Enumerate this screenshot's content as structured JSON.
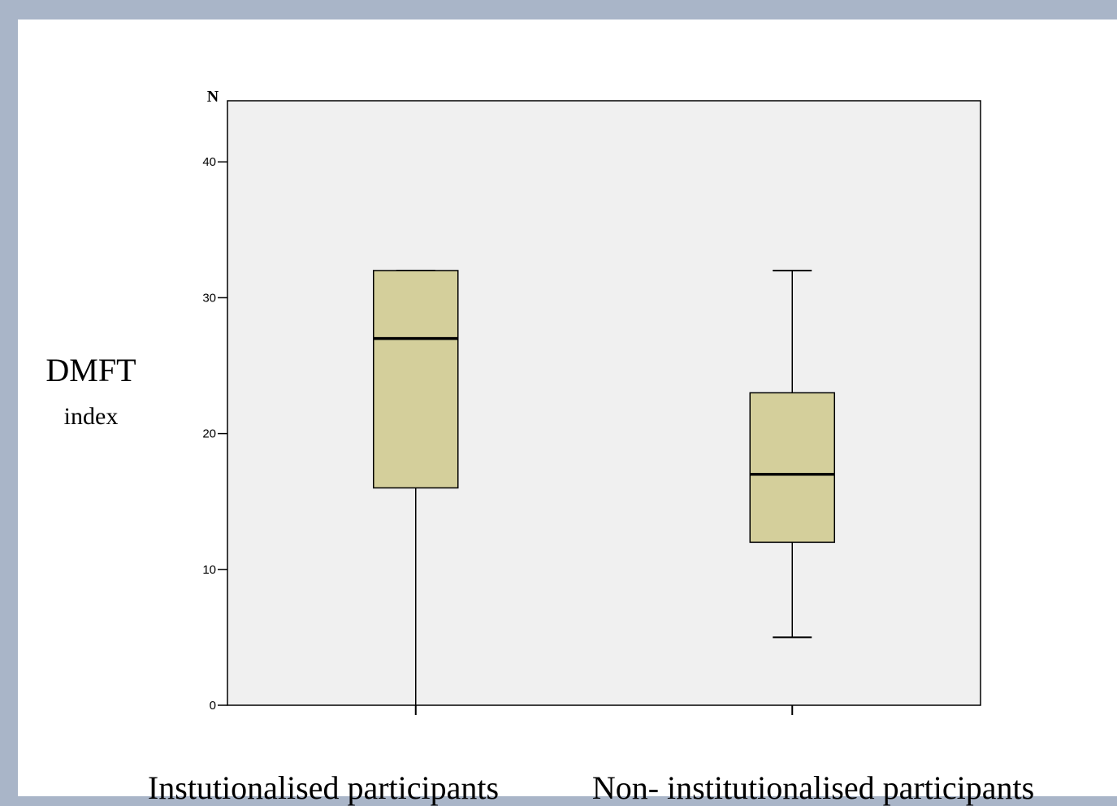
{
  "chart_data": {
    "type": "boxplot",
    "y_axis_top_label": "N",
    "ylabel": "DMFT",
    "ylabel_sub": "index",
    "ylim": [
      0,
      44.5
    ],
    "yticks": [
      0,
      10,
      20,
      30,
      40
    ],
    "categories": [
      "Instutionalised participants",
      "Non- institutionalised participants"
    ],
    "boxes": [
      {
        "category": "Instutionalised participants",
        "min": 0,
        "q1": 16,
        "median": 27,
        "q3": 32,
        "max": 32
      },
      {
        "category": "Non- institutionalised participants",
        "min": 5,
        "q1": 12,
        "median": 17,
        "q3": 23,
        "max": 32
      }
    ],
    "colors": {
      "box_fill": "#d4cf9b",
      "plot_background": "#f0f0f0",
      "outer_background": "#a9b5c8",
      "stroke": "#000000"
    },
    "grid": false,
    "legend": "none"
  }
}
